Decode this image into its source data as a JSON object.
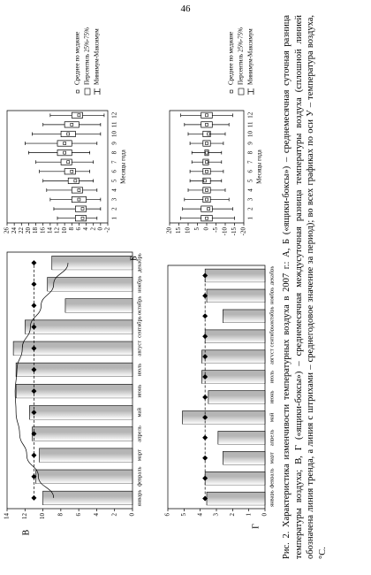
{
  "page_number": "46",
  "caption": "Рис. 2. Характеристика изменчивости температурных воздуха в 2007 г.: А, Б («ящики-боксы») – среднемесячная суточная разница температуры воздуха; В, Г («ящики-боксы») – среднемесячная междусуточная разница температуры воздуха (сплошной линией обозначена линия тренда, а линия с штрихами – среднегодовое значение за период); во всех графиках по оси У – температура воздуха, °С.",
  "chart_data": [
    {
      "type": "bar",
      "label": "В",
      "categories": [
        "январь",
        "февраль",
        "март",
        "апрель",
        "май",
        "июнь",
        "июль",
        "август",
        "сентябрь",
        "октябрь",
        "ноябрь",
        "декабрь"
      ],
      "series": [
        {
          "color": "#b5b5b5",
          "style": "bar",
          "values": [
            10,
            10.8,
            10.4,
            11.2,
            11.5,
            13,
            13,
            13.3,
            12,
            7.5,
            9.5,
            9
          ]
        },
        {
          "color": "#000000",
          "style": "line",
          "values": [
            8.8,
            10.5,
            11.8,
            12.6,
            13.0,
            13.1,
            12.9,
            12.3,
            11.4,
            10.2,
            8.8,
            7.2
          ]
        },
        {
          "color": "#000000",
          "style": "points",
          "values": [
            11,
            11,
            11,
            11,
            11,
            11,
            11,
            11,
            11,
            11,
            11,
            11
          ]
        }
      ],
      "ylim": [
        0,
        14
      ],
      "yticks": [
        0,
        2,
        4,
        6,
        8,
        10,
        12,
        14
      ]
    },
    {
      "type": "box",
      "categories": [
        "1",
        "2",
        "3",
        "4",
        "5",
        "6",
        "7",
        "8",
        "9",
        "10",
        "11",
        "12"
      ],
      "xlabel": "Месяцы года",
      "min": [
        1,
        0,
        0,
        1,
        2,
        3,
        2,
        3,
        1,
        0,
        0,
        -1
      ],
      "q1": [
        4,
        4,
        4,
        5,
        6,
        7,
        8,
        8,
        8,
        7,
        6,
        5
      ],
      "median": [
        5,
        5,
        6,
        6,
        7,
        8,
        9,
        10,
        10,
        9,
        8,
        6
      ],
      "q3": [
        7,
        7,
        8,
        8,
        9,
        10,
        11,
        12,
        12,
        11,
        10,
        8
      ],
      "max": [
        12,
        13,
        14,
        15,
        16,
        17,
        18,
        20,
        21,
        19,
        16,
        14
      ],
      "legend": [
        "Среднее по медиане",
        "Персентиль 25%-75%",
        "Минимум-Максимум"
      ],
      "ylim": [
        -2,
        26
      ],
      "yticks": [
        -2,
        0,
        2,
        4,
        6,
        8,
        10,
        12,
        14,
        16,
        18,
        20,
        22,
        24,
        26
      ]
    },
    {
      "type": "bar",
      "label": "Г",
      "categories": [
        "январь",
        "февраль",
        "март",
        "апрель",
        "май",
        "июнь",
        "июль",
        "август",
        "сентябрь",
        "октябрь",
        "ноябрь",
        "декабрь"
      ],
      "series": [
        {
          "color": "#b5b5b5",
          "style": "bar",
          "values": [
            3.6,
            3.7,
            2.6,
            2.9,
            5.1,
            3.5,
            3.9,
            3.9,
            3.7,
            2.6,
            3.6,
            3.7
          ]
        },
        {
          "color": "#000000",
          "style": "points",
          "values": [
            3.7,
            3.7,
            3.7,
            3.7,
            3.7,
            3.7,
            3.7,
            3.7,
            3.7,
            3.7,
            3.7,
            3.7
          ]
        }
      ],
      "ylim": [
        0,
        6
      ],
      "yticks": [
        0,
        1,
        2,
        3,
        4,
        5,
        6
      ]
    },
    {
      "type": "box",
      "label": "Б",
      "categories": [
        "1",
        "2",
        "3",
        "4",
        "5",
        "6",
        "7",
        "8",
        "9",
        "10",
        "11",
        "12"
      ],
      "xlabel": "Месяцы года",
      "min": [
        -15,
        -14,
        -12,
        -10,
        -8,
        -9,
        -8,
        -8,
        -9,
        -10,
        -12,
        -14
      ],
      "q1": [
        -3,
        -3,
        -2,
        -2,
        -2,
        -2,
        -1,
        -1,
        -2,
        -2,
        -3,
        -3
      ],
      "median": [
        0,
        -1,
        0,
        0,
        1,
        0,
        0,
        0,
        0,
        -1,
        0,
        0
      ],
      "q3": [
        3,
        3,
        2,
        2,
        2,
        2,
        2,
        1,
        2,
        2,
        3,
        3
      ],
      "max": [
        14,
        13,
        12,
        10,
        9,
        9,
        8,
        8,
        9,
        10,
        12,
        14
      ],
      "legend": [
        "Среднее по медиане",
        "Персентиль 25%-75%",
        "Минимум-Максимум"
      ],
      "ylim": [
        -20,
        20
      ],
      "yticks": [
        -20,
        -15,
        -10,
        -5,
        0,
        5,
        10,
        15,
        20
      ]
    }
  ]
}
